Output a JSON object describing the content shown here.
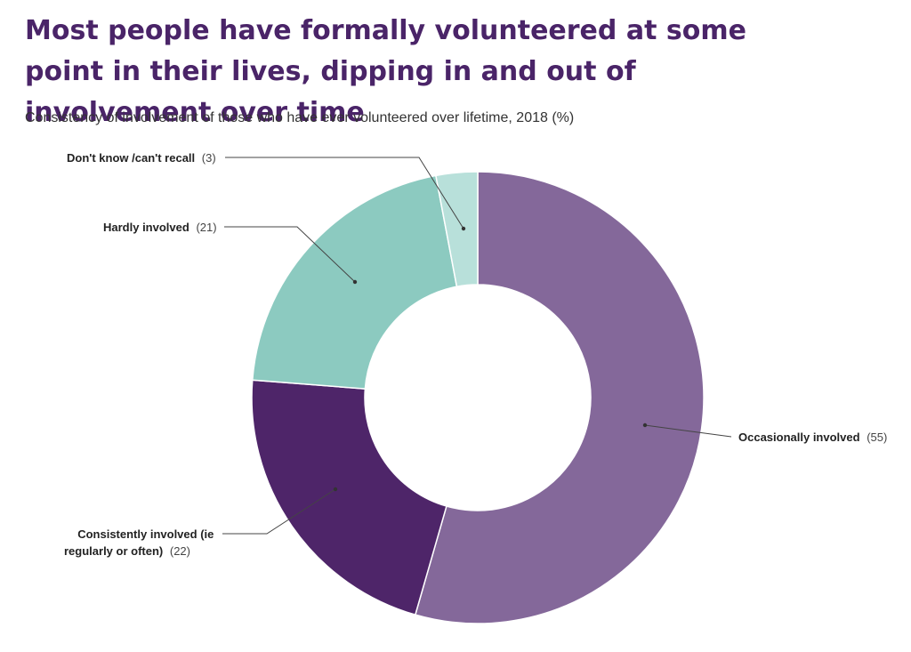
{
  "header": {
    "title": "Most people have formally volunteered at some point in their lives, dipping in and out of involvement over time",
    "subtitle": "Consistency of involvement of those who have ever volunteered over lifetime, 2018 (%)"
  },
  "chart_data": {
    "type": "pie",
    "donut": true,
    "unit": "%",
    "slices": [
      {
        "name": "Occasionally involved",
        "value": 55,
        "value_label": "(55)",
        "color": "#84689a"
      },
      {
        "name": "Consistently involved (ie regularly or often)",
        "name_lines": [
          "Consistently involved (ie",
          "regularly or often)"
        ],
        "value": 22,
        "value_label": "(22)",
        "color": "#4e2569"
      },
      {
        "name": "Hardly involved",
        "value": 21,
        "value_label": "(21)",
        "color": "#8ccac0"
      },
      {
        "name": "Don't know /can't recall",
        "value": 3,
        "value_label": "(3)",
        "color": "#b8e0da"
      }
    ]
  }
}
